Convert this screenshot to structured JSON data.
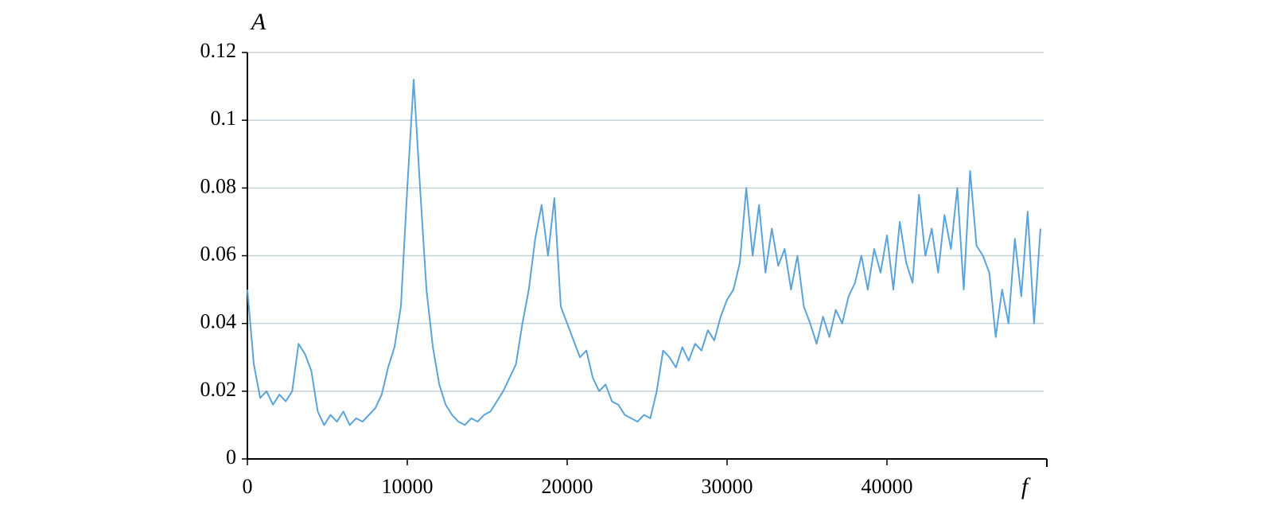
{
  "chart_data": {
    "type": "line",
    "y_label": "A",
    "x_label": "f",
    "x": [
      0,
      400,
      800,
      1200,
      1600,
      2000,
      2400,
      2800,
      3200,
      3600,
      4000,
      4400,
      4800,
      5200,
      5600,
      6000,
      6400,
      6800,
      7200,
      7600,
      8000,
      8400,
      8800,
      9200,
      9600,
      10000,
      10400,
      10800,
      11200,
      11600,
      12000,
      12400,
      12800,
      13200,
      13600,
      14000,
      14400,
      14800,
      15200,
      15600,
      16000,
      16400,
      16800,
      17200,
      17600,
      18000,
      18400,
      18800,
      19200,
      19600,
      20000,
      20400,
      20800,
      21200,
      21600,
      22000,
      22400,
      22800,
      23200,
      23600,
      24000,
      24400,
      24800,
      25200,
      25600,
      26000,
      26400,
      26800,
      27200,
      27600,
      28000,
      28400,
      28800,
      29200,
      29600,
      30000,
      30400,
      30800,
      31200,
      31600,
      32000,
      32400,
      32800,
      33200,
      33600,
      34000,
      34400,
      34800,
      35200,
      35600,
      36000,
      36400,
      36800,
      37200,
      37600,
      38000,
      38400,
      38800,
      39200,
      39600,
      40000,
      40400,
      40800,
      41200,
      41600,
      42000,
      42400,
      42800,
      43200,
      43600,
      44000,
      44400,
      44800,
      45200,
      45600,
      46000,
      46400,
      46800,
      47200,
      47600,
      48000,
      48400,
      48800,
      49200,
      49600
    ],
    "series": [
      {
        "color": "#5ba3d9",
        "values": [
          0.05,
          0.028,
          0.018,
          0.02,
          0.016,
          0.019,
          0.017,
          0.02,
          0.034,
          0.031,
          0.026,
          0.014,
          0.01,
          0.013,
          0.011,
          0.014,
          0.01,
          0.012,
          0.011,
          0.013,
          0.015,
          0.019,
          0.027,
          0.033,
          0.045,
          0.08,
          0.112,
          0.08,
          0.05,
          0.033,
          0.022,
          0.016,
          0.013,
          0.011,
          0.01,
          0.012,
          0.011,
          0.013,
          0.014,
          0.017,
          0.02,
          0.024,
          0.028,
          0.04,
          0.05,
          0.065,
          0.075,
          0.06,
          0.077,
          0.045,
          0.04,
          0.035,
          0.03,
          0.032,
          0.024,
          0.02,
          0.022,
          0.017,
          0.016,
          0.013,
          0.012,
          0.011,
          0.013,
          0.012,
          0.02,
          0.032,
          0.03,
          0.027,
          0.033,
          0.029,
          0.034,
          0.032,
          0.038,
          0.035,
          0.042,
          0.047,
          0.05,
          0.058,
          0.08,
          0.06,
          0.075,
          0.055,
          0.068,
          0.057,
          0.062,
          0.05,
          0.06,
          0.045,
          0.04,
          0.034,
          0.042,
          0.036,
          0.044,
          0.04,
          0.048,
          0.052,
          0.06,
          0.05,
          0.062,
          0.055,
          0.066,
          0.05,
          0.07,
          0.058,
          0.052,
          0.078,
          0.06,
          0.068,
          0.055,
          0.072,
          0.062,
          0.08,
          0.05,
          0.085,
          0.063,
          0.06,
          0.055,
          0.036,
          0.05,
          0.04,
          0.065,
          0.048,
          0.073,
          0.04,
          0.068
        ]
      }
    ],
    "xlim": [
      0,
      50000
    ],
    "xticks": [
      0,
      10000,
      20000,
      30000,
      40000
    ],
    "ylim": [
      0,
      0.12
    ],
    "yticks": [
      0,
      0.02,
      0.04,
      0.06,
      0.08,
      0.1,
      0.12
    ],
    "grid": true
  }
}
